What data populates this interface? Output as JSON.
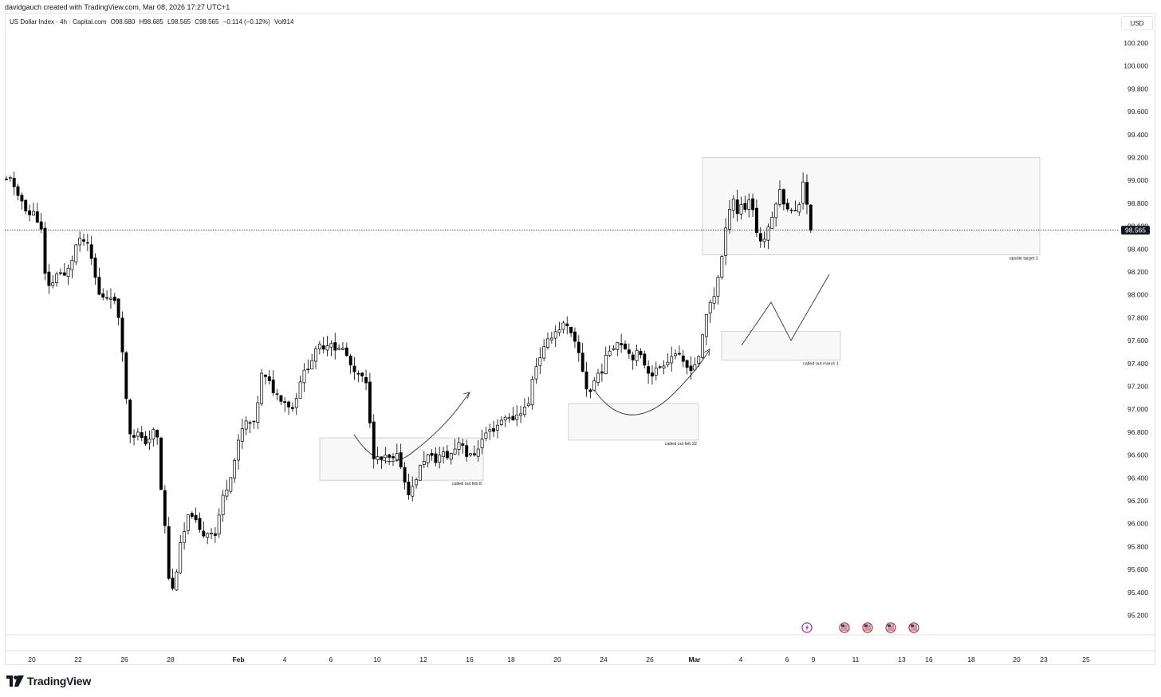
{
  "attribution": "davidgauch created with TradingView.com, Mar 08, 2026 17:27 UTC+1",
  "legend": {
    "symbol": "US Dollar Index · 4h · Capital.com",
    "open": "O98.680",
    "high": "H98.685",
    "low": "L98.565",
    "close": "C98.565",
    "change": "−0.114 (−0.12%)",
    "volume": "Vol914"
  },
  "currency": "USD",
  "last_price_label": "98.565",
  "brand": "TradingView",
  "colors": {
    "candle": "#000000",
    "box_fill": "#f8f8f8",
    "box_border": "#c8c8c8",
    "event_icon": "#9c27b0"
  },
  "event_icons": [
    "lightning-icon",
    "us-flag-icon",
    "us-flag-icon",
    "us-flag-icon",
    "us-flag-icon"
  ],
  "chart_data": {
    "type": "candlestick",
    "title": "",
    "ylim": [
      95.0,
      100.35
    ],
    "y_ticks": [
      "100.200",
      "100.000",
      "99.800",
      "99.600",
      "99.400",
      "99.200",
      "99.000",
      "98.800",
      "98.600",
      "98.400",
      "98.200",
      "98.000",
      "97.800",
      "97.600",
      "97.400",
      "97.200",
      "97.000",
      "96.800",
      "96.600",
      "96.400",
      "96.200",
      "96.000",
      "95.800",
      "95.600",
      "95.400",
      "95.200"
    ],
    "x_ticks": [
      {
        "label": "20",
        "bold": false
      },
      {
        "label": "22",
        "bold": false
      },
      {
        "label": "26",
        "bold": false
      },
      {
        "label": "28",
        "bold": false
      },
      {
        "label": "Feb",
        "bold": true
      },
      {
        "label": "4",
        "bold": false
      },
      {
        "label": "6",
        "bold": false
      },
      {
        "label": "10",
        "bold": false
      },
      {
        "label": "12",
        "bold": false
      },
      {
        "label": "16",
        "bold": false
      },
      {
        "label": "18",
        "bold": false
      },
      {
        "label": "20",
        "bold": false
      },
      {
        "label": "24",
        "bold": false
      },
      {
        "label": "26",
        "bold": false
      },
      {
        "label": "Mar",
        "bold": true
      },
      {
        "label": "4",
        "bold": false
      },
      {
        "label": "6",
        "bold": false
      },
      {
        "label": "9",
        "bold": false
      },
      {
        "label": "11",
        "bold": false
      },
      {
        "label": "13",
        "bold": false
      },
      {
        "label": "16",
        "bold": false
      },
      {
        "label": "18",
        "bold": false
      },
      {
        "label": "20",
        "bold": false
      },
      {
        "label": "23",
        "bold": false
      },
      {
        "label": "25",
        "bold": false
      }
    ],
    "last_price": 98.565,
    "close_path": [
      [
        0,
        99.0
      ],
      [
        6,
        99.05
      ],
      [
        12,
        98.85
      ],
      [
        20,
        98.82
      ],
      [
        28,
        98.7
      ],
      [
        36,
        98.72
      ],
      [
        44,
        98.55
      ],
      [
        48,
        98.18
      ],
      [
        56,
        98.05
      ],
      [
        64,
        98.22
      ],
      [
        72,
        98.15
      ],
      [
        80,
        98.25
      ],
      [
        88,
        98.45
      ],
      [
        96,
        98.48
      ],
      [
        104,
        98.4
      ],
      [
        110,
        98.2
      ],
      [
        116,
        98.0
      ],
      [
        124,
        97.98
      ],
      [
        132,
        98.0
      ],
      [
        140,
        97.85
      ],
      [
        146,
        97.5
      ],
      [
        150,
        97.1
      ],
      [
        156,
        96.75
      ],
      [
        164,
        96.8
      ],
      [
        172,
        96.7
      ],
      [
        180,
        96.75
      ],
      [
        188,
        96.85
      ],
      [
        194,
        96.3
      ],
      [
        198,
        96.05
      ],
      [
        204,
        95.5
      ],
      [
        210,
        95.4
      ],
      [
        216,
        95.75
      ],
      [
        222,
        95.9
      ],
      [
        228,
        96.05
      ],
      [
        234,
        96.1
      ],
      [
        240,
        95.95
      ],
      [
        248,
        95.9
      ],
      [
        256,
        95.95
      ],
      [
        262,
        95.9
      ],
      [
        270,
        96.2
      ],
      [
        278,
        96.35
      ],
      [
        286,
        96.55
      ],
      [
        294,
        96.8
      ],
      [
        302,
        96.9
      ],
      [
        310,
        96.85
      ],
      [
        316,
        97.1
      ],
      [
        320,
        97.3
      ],
      [
        328,
        97.25
      ],
      [
        336,
        97.15
      ],
      [
        344,
        97.1
      ],
      [
        352,
        97.05
      ],
      [
        360,
        97.0
      ],
      [
        368,
        97.25
      ],
      [
        376,
        97.35
      ],
      [
        384,
        97.45
      ],
      [
        392,
        97.55
      ],
      [
        400,
        97.55
      ],
      [
        408,
        97.6
      ],
      [
        414,
        97.5
      ],
      [
        420,
        97.55
      ],
      [
        428,
        97.45
      ],
      [
        436,
        97.3
      ],
      [
        444,
        97.3
      ],
      [
        452,
        97.2
      ],
      [
        456,
        96.9
      ],
      [
        460,
        96.6
      ],
      [
        468,
        96.55
      ],
      [
        476,
        96.58
      ],
      [
        484,
        96.55
      ],
      [
        492,
        96.6
      ],
      [
        500,
        96.35
      ],
      [
        506,
        96.25
      ],
      [
        514,
        96.4
      ],
      [
        522,
        96.55
      ],
      [
        530,
        96.6
      ],
      [
        538,
        96.55
      ],
      [
        546,
        96.62
      ],
      [
        554,
        96.58
      ],
      [
        562,
        96.65
      ],
      [
        570,
        96.75
      ],
      [
        578,
        96.58
      ],
      [
        586,
        96.6
      ],
      [
        594,
        96.7
      ],
      [
        602,
        96.8
      ],
      [
        610,
        96.82
      ],
      [
        618,
        96.88
      ],
      [
        626,
        96.95
      ],
      [
        632,
        96.9
      ],
      [
        640,
        96.95
      ],
      [
        648,
        97.0
      ],
      [
        656,
        97.05
      ],
      [
        660,
        97.3
      ],
      [
        668,
        97.45
      ],
      [
        676,
        97.55
      ],
      [
        684,
        97.65
      ],
      [
        692,
        97.7
      ],
      [
        700,
        97.75
      ],
      [
        708,
        97.65
      ],
      [
        714,
        97.55
      ],
      [
        720,
        97.45
      ],
      [
        726,
        97.2
      ],
      [
        732,
        97.15
      ],
      [
        740,
        97.3
      ],
      [
        748,
        97.35
      ],
      [
        754,
        97.5
      ],
      [
        760,
        97.55
      ],
      [
        768,
        97.6
      ],
      [
        776,
        97.55
      ],
      [
        784,
        97.45
      ],
      [
        792,
        97.5
      ],
      [
        800,
        97.4
      ],
      [
        808,
        97.3
      ],
      [
        816,
        97.35
      ],
      [
        824,
        97.4
      ],
      [
        832,
        97.45
      ],
      [
        840,
        97.5
      ],
      [
        848,
        97.4
      ],
      [
        856,
        97.35
      ],
      [
        864,
        97.4
      ],
      [
        870,
        97.5
      ],
      [
        876,
        97.75
      ],
      [
        880,
        97.9
      ],
      [
        888,
        98.0
      ],
      [
        896,
        98.3
      ],
      [
        900,
        98.4
      ],
      [
        904,
        98.7
      ],
      [
        908,
        98.8
      ],
      [
        912,
        98.85
      ],
      [
        916,
        98.7
      ],
      [
        920,
        98.8
      ],
      [
        926,
        98.75
      ],
      [
        932,
        98.85
      ],
      [
        938,
        98.7
      ],
      [
        942,
        98.5
      ],
      [
        948,
        98.45
      ],
      [
        954,
        98.55
      ],
      [
        958,
        98.6
      ],
      [
        964,
        98.8
      ],
      [
        970,
        98.9
      ],
      [
        976,
        98.8
      ],
      [
        982,
        98.75
      ],
      [
        988,
        98.7
      ],
      [
        994,
        98.78
      ],
      [
        998,
        99.05
      ],
      [
        1004,
        98.8
      ],
      [
        1008,
        98.68
      ],
      [
        1012,
        98.565
      ]
    ],
    "annotations": [
      {
        "label": "upside target 1",
        "x1": 881,
        "x2": 1304,
        "y_top": 99.2,
        "y_bottom": 98.35
      },
      {
        "label": "called out march 1",
        "x1": 905,
        "x2": 1054,
        "y_top": 97.68,
        "y_bottom": 97.43
      },
      {
        "label": "called out feb 22",
        "x1": 713,
        "x2": 876,
        "y_top": 97.05,
        "y_bottom": 96.73
      },
      {
        "label": "called out feb 8",
        "x1": 401,
        "x2": 606,
        "y_top": 96.75,
        "y_bottom": 96.38
      }
    ]
  }
}
